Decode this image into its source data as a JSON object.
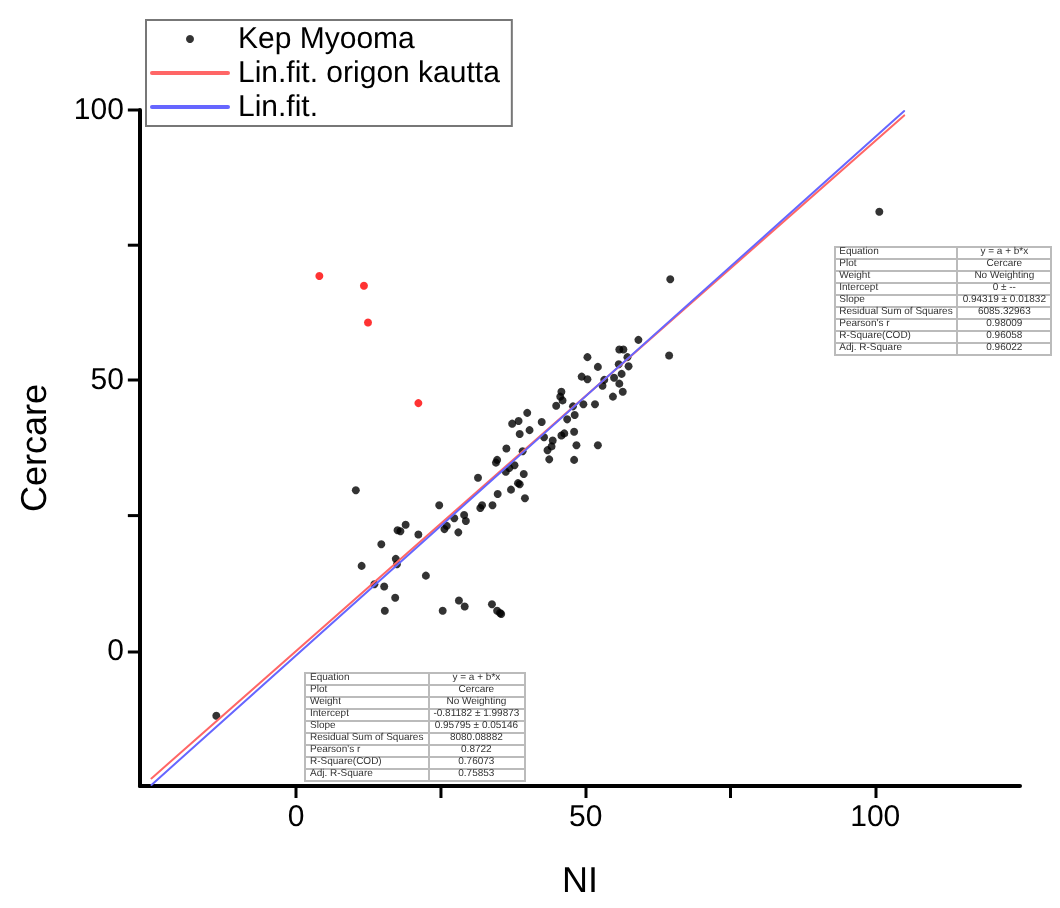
{
  "chart_data": {
    "type": "scatter",
    "xlabel": "NI",
    "ylabel": "Cercare",
    "xlim": [
      -27,
      125
    ],
    "ylim": [
      -25,
      100
    ],
    "xticks": [
      0,
      {
        "value": 25,
        "label": null
      },
      50,
      {
        "value": 75,
        "label": null
      },
      100
    ],
    "yticks": [
      0,
      {
        "value": 25,
        "label": null
      },
      50,
      {
        "value": 75,
        "label": null
      },
      100
    ],
    "grid": false,
    "legend": "top left",
    "marker": "circle",
    "series": [
      {
        "name": "Kep Myooma",
        "color": "#000000",
        "x": [
          64.6,
          64.4,
          59.1,
          56.5,
          55.8,
          50.3,
          52.1,
          57.2,
          55.7,
          57.4,
          56.2,
          54.9,
          53.2,
          49.3,
          50.3,
          52.9,
          55.8,
          56.4,
          54.7,
          51.6,
          49.6,
          47.8,
          45.8,
          45.6,
          46.0,
          48.1,
          46.8,
          44.9,
          48.0,
          48.4,
          52.1,
          48.0,
          46.3,
          45.8,
          44.3,
          44.1,
          43.4,
          43.7,
          42.8,
          42.4,
          40.3,
          39.9,
          38.4,
          37.3,
          38.6,
          36.3,
          39.1,
          37.7,
          39.3,
          36.8,
          34.7,
          34.5,
          31.4,
          36.2,
          38.3,
          38.6,
          37.1,
          39.5,
          34.8,
          33.9,
          31.8,
          32.1,
          29.0,
          29.3,
          27.3,
          26.0,
          25.6,
          28.0,
          24.7,
          21.1,
          18.9,
          17.5,
          18.0,
          14.7,
          10.3,
          11.3,
          13.5,
          15.2,
          17.2,
          17.4,
          22.4,
          17.1,
          15.3,
          25.3,
          28.1,
          29.1,
          33.8,
          34.7,
          35.2,
          35.4,
          -13.8,
          100.7
        ],
        "values": [
          68.7,
          54.6,
          57.5,
          55.7,
          55.7,
          54.3,
          52.5,
          54.3,
          53.0,
          52.6,
          51.2,
          50.5,
          50.1,
          50.7,
          50.2,
          49.0,
          49.4,
          47.9,
          47.0,
          45.6,
          45.6,
          45.2,
          47.9,
          47.0,
          46.3,
          43.6,
          42.8,
          45.3,
          40.5,
          38.0,
          38.0,
          35.3,
          40.2,
          39.8,
          38.9,
          37.8,
          37.1,
          35.4,
          39.5,
          42.3,
          40.8,
          44.0,
          42.5,
          42.0,
          40.1,
          37.4,
          36.9,
          34.3,
          32.7,
          33.8,
          35.3,
          34.8,
          32.0,
          33.1,
          31.0,
          30.8,
          29.8,
          28.2,
          29.0,
          26.9,
          26.4,
          26.9,
          25.1,
          24.0,
          24.5,
          23.1,
          22.5,
          21.9,
          26.9,
          21.5,
          23.3,
          22.3,
          22.1,
          19.7,
          29.7,
          15.7,
          12.3,
          11.9,
          17.0,
          16.0,
          13.9,
          9.8,
          7.4,
          7.4,
          9.3,
          8.2,
          8.6,
          7.4,
          7.0,
          6.8,
          -12.0,
          81.2
        ]
      },
      {
        "color": "#ff0000",
        "x": [
          4.0,
          11.7,
          12.4,
          21.1
        ],
        "values": [
          69.3,
          67.5,
          60.7,
          45.8
        ]
      },
      {
        "name": "Lin.fit. origon kautta",
        "type": "line",
        "color": "#ff6666",
        "marker": "none",
        "x": [
          -25,
          105
        ],
        "values": [
          -23.6,
          99.0
        ]
      },
      {
        "name": "Lin.fit.",
        "type": "line",
        "color": "#6666ff",
        "marker": "none",
        "x": [
          -25,
          105
        ],
        "values": [
          -24.8,
          99.8
        ]
      }
    ],
    "annotations": [
      "Equation",
      "y = a + b*x",
      "Plot",
      "Cercare",
      "Weight",
      "No Weighting",
      "Intercept",
      "0 ± --",
      "Slope",
      "0.94319 ± 0.01832",
      "Residual Sum of Squares",
      "6085.32963",
      "Pearson's r",
      "0.98009",
      "R-Square(COD)",
      "0.96058",
      "Adj. R-Square",
      "0.96022",
      "Equation",
      "y = a + b*x",
      "Plot",
      "Cercare",
      "Weight",
      "No Weighting",
      "Intercept",
      "-0.81182 ± 1.99873",
      "Slope",
      "0.95795 ± 0.05146",
      "Residual Sum of Squares",
      "8080.08882",
      "Pearson's r",
      "0.8722",
      "R-Square(COD)",
      "0.76073",
      "Adj. R-Square",
      "0.75853"
    ]
  }
}
